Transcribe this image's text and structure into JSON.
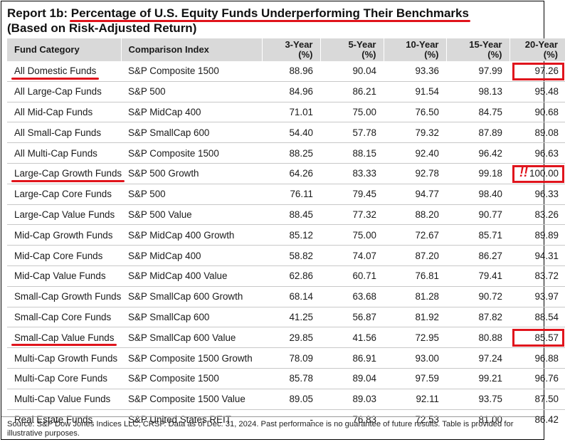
{
  "title": {
    "prefix": "Report 1b: ",
    "main": "Percentage of U.S. Equity Funds Underperforming Their Benchmarks",
    "subtitle": "(Based on Risk-Adjusted Return)"
  },
  "table": {
    "headers": [
      "Fund Category",
      "Comparison Index",
      "3-Year",
      "5-Year",
      "10-Year",
      "15-Year",
      "20-Year"
    ],
    "unit": "(%)",
    "rows": [
      {
        "category": "All Domestic Funds",
        "index": "S&P Composite 1500",
        "y3": "88.96",
        "y5": "90.04",
        "y10": "93.36",
        "y15": "97.99",
        "y20": "97.26",
        "underline": true,
        "boxed": true
      },
      {
        "category": "All Large-Cap Funds",
        "index": "S&P 500",
        "y3": "84.96",
        "y5": "86.21",
        "y10": "91.54",
        "y15": "98.13",
        "y20": "95.48"
      },
      {
        "category": "All Mid-Cap Funds",
        "index": "S&P MidCap 400",
        "y3": "71.01",
        "y5": "75.00",
        "y10": "76.50",
        "y15": "84.75",
        "y20": "90.68"
      },
      {
        "category": "All Small-Cap Funds",
        "index": "S&P SmallCap 600",
        "y3": "54.40",
        "y5": "57.78",
        "y10": "79.32",
        "y15": "87.89",
        "y20": "89.08"
      },
      {
        "category": "All Multi-Cap Funds",
        "index": "S&P Composite 1500",
        "y3": "88.25",
        "y5": "88.15",
        "y10": "92.40",
        "y15": "96.42",
        "y20": "96.63"
      },
      {
        "category": "Large-Cap Growth Funds",
        "index": "S&P 500 Growth",
        "y3": "64.26",
        "y5": "83.33",
        "y10": "92.78",
        "y15": "99.18",
        "y20": "100.00",
        "underline": true,
        "boxed": true,
        "bang": "!!"
      },
      {
        "category": "Large-Cap Core Funds",
        "index": "S&P 500",
        "y3": "76.11",
        "y5": "79.45",
        "y10": "94.77",
        "y15": "98.40",
        "y20": "96.33"
      },
      {
        "category": "Large-Cap Value Funds",
        "index": "S&P 500 Value",
        "y3": "88.45",
        "y5": "77.32",
        "y10": "88.20",
        "y15": "90.77",
        "y20": "83.26"
      },
      {
        "category": "Mid-Cap Growth Funds",
        "index": "S&P MidCap 400 Growth",
        "y3": "85.12",
        "y5": "75.00",
        "y10": "72.67",
        "y15": "85.71",
        "y20": "89.89"
      },
      {
        "category": "Mid-Cap Core Funds",
        "index": "S&P MidCap 400",
        "y3": "58.82",
        "y5": "74.07",
        "y10": "87.20",
        "y15": "86.27",
        "y20": "94.31"
      },
      {
        "category": "Mid-Cap Value Funds",
        "index": "S&P MidCap 400 Value",
        "y3": "62.86",
        "y5": "60.71",
        "y10": "76.81",
        "y15": "79.41",
        "y20": "83.72"
      },
      {
        "category": "Small-Cap Growth Funds",
        "index": "S&P SmallCap 600 Growth",
        "y3": "68.14",
        "y5": "63.68",
        "y10": "81.28",
        "y15": "90.72",
        "y20": "93.97"
      },
      {
        "category": "Small-Cap Core Funds",
        "index": "S&P SmallCap 600",
        "y3": "41.25",
        "y5": "56.87",
        "y10": "81.92",
        "y15": "87.82",
        "y20": "88.54"
      },
      {
        "category": "Small-Cap Value Funds",
        "index": "S&P SmallCap 600 Value",
        "y3": "29.85",
        "y5": "41.56",
        "y10": "72.95",
        "y15": "80.88",
        "y20": "85.57",
        "underline": true,
        "boxed": true
      },
      {
        "category": "Multi-Cap Growth Funds",
        "index": "S&P Composite 1500 Growth",
        "y3": "78.09",
        "y5": "86.91",
        "y10": "93.00",
        "y15": "97.24",
        "y20": "96.88"
      },
      {
        "category": "Multi-Cap Core Funds",
        "index": "S&P Composite 1500",
        "y3": "85.78",
        "y5": "89.04",
        "y10": "97.59",
        "y15": "99.21",
        "y20": "96.76"
      },
      {
        "category": "Multi-Cap Value Funds",
        "index": "S&P Composite 1500 Value",
        "y3": "89.05",
        "y5": "89.03",
        "y10": "92.11",
        "y15": "93.75",
        "y20": "87.50"
      },
      {
        "category": "Real Estate Funds",
        "index": "S&P United States REIT",
        "y3": "-",
        "y5": "76.83",
        "y10": "72.53",
        "y15": "81.00",
        "y20": "86.42"
      }
    ]
  },
  "footnote": "Source: S&P Dow Jones Indices LLC, CRSP.  Data as of Dec. 31, 2024.  Past performance is no guarantee of future results.  Table is provided for illustrative purposes.",
  "colors": {
    "highlight": "#e0141c",
    "header_bg": "#d9d9d9"
  }
}
